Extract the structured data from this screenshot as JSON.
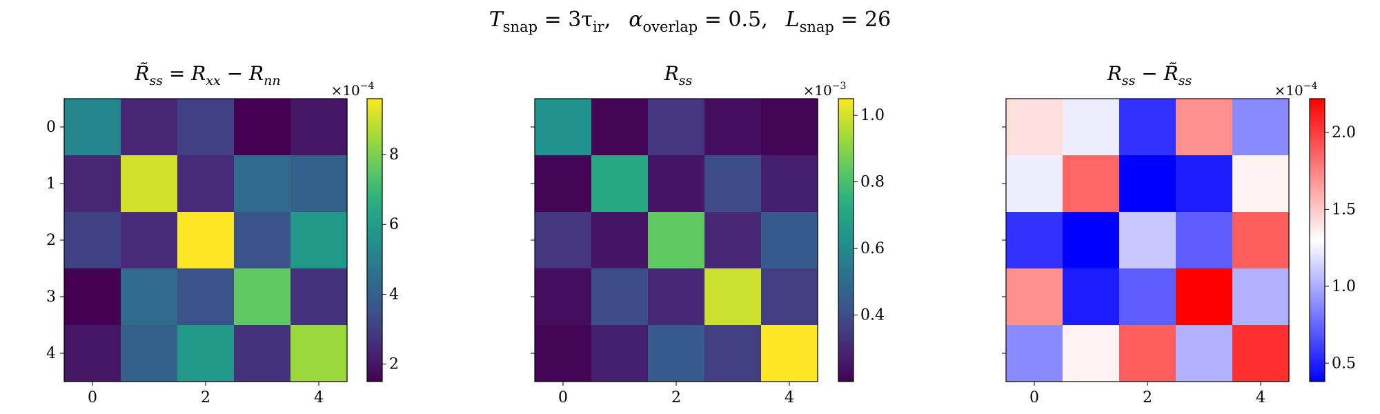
{
  "suptitle": {
    "t_snap": "T",
    "t_snap_sub": "snap",
    "t_snap_val": " = 3τ",
    "t_snap_val_sub": "ir",
    "alpha": "α",
    "alpha_sub": "overlap",
    "alpha_val": " = 0.5,",
    "l": "L",
    "l_sub": "snap",
    "l_val": " = 26",
    "sep": ","
  },
  "chart_data": [
    {
      "type": "heatmap",
      "title": "R̃ss = Rxx − Rnn",
      "title_parts": {
        "a": "R̃",
        "a_sub": "ss",
        "eq": " = ",
        "b": "R",
        "b_sub": "xx",
        "minus": " − ",
        "c": "R",
        "c_sub": "nn"
      },
      "colormap": "viridis",
      "x_ticks": [
        "0",
        "2",
        "4"
      ],
      "y_ticks": [
        "0",
        "1",
        "2",
        "3",
        "4"
      ],
      "colorbar": {
        "exponent_label": "×10−4",
        "base": "×10",
        "exp": "−4",
        "range": [
          1.5,
          9.6
        ],
        "ticks": [
          "2",
          "4",
          "6",
          "8"
        ],
        "tick_values": [
          2,
          4,
          6,
          8
        ]
      },
      "values": [
        [
          5.2,
          2.4,
          3.1,
          1.5,
          2.0
        ],
        [
          2.4,
          9.1,
          2.5,
          4.3,
          4.0
        ],
        [
          3.1,
          2.5,
          9.6,
          3.6,
          5.8
        ],
        [
          1.5,
          4.3,
          3.6,
          7.6,
          2.7
        ],
        [
          2.0,
          4.0,
          5.8,
          2.7,
          8.4
        ]
      ]
    },
    {
      "type": "heatmap",
      "title": "Rss",
      "title_parts": {
        "a": "R",
        "a_sub": "ss"
      },
      "colormap": "viridis",
      "x_ticks": [
        "0",
        "2",
        "4"
      ],
      "y_ticks": [
        "0",
        "1",
        "2",
        "3",
        "4"
      ],
      "colorbar": {
        "exponent_label": "×10−3",
        "base": "×10",
        "exp": "−3",
        "range": [
          0.2,
          1.05
        ],
        "ticks": [
          "0.4",
          "0.6",
          "0.8",
          "1.0"
        ],
        "tick_values": [
          0.4,
          0.6,
          0.8,
          1.0
        ]
      },
      "values": [
        [
          0.63,
          0.21,
          0.34,
          0.23,
          0.21
        ],
        [
          0.21,
          0.72,
          0.25,
          0.4,
          0.28
        ],
        [
          0.34,
          0.25,
          0.84,
          0.3,
          0.44
        ],
        [
          0.23,
          0.4,
          0.3,
          0.99,
          0.36
        ],
        [
          0.21,
          0.28,
          0.44,
          0.36,
          1.05
        ]
      ]
    },
    {
      "type": "heatmap",
      "title": "Rss − R̃ss",
      "title_parts": {
        "a": "R",
        "a_sub": "ss",
        "minus": " − ",
        "b": "R̃",
        "b_sub": "ss"
      },
      "colormap": "bwr",
      "x_ticks": [
        "0",
        "2",
        "4"
      ],
      "y_ticks": [
        "0",
        "1",
        "2",
        "3",
        "4"
      ],
      "colorbar": {
        "exponent_label": "×10−4",
        "base": "×10",
        "exp": "−4",
        "range": [
          0.38,
          2.22
        ],
        "ticks": [
          "0.5",
          "1.0",
          "1.5",
          "2.0"
        ],
        "tick_values": [
          0.5,
          1.0,
          1.5,
          2.0
        ]
      },
      "values": [
        [
          1.42,
          1.24,
          0.56,
          1.7,
          0.88
        ],
        [
          1.24,
          1.85,
          0.38,
          0.48,
          1.34
        ],
        [
          0.56,
          0.38,
          1.1,
          0.72,
          1.88
        ],
        [
          1.7,
          0.48,
          0.72,
          2.22,
          1.02
        ],
        [
          0.88,
          1.34,
          1.88,
          1.02,
          2.05
        ]
      ]
    }
  ]
}
